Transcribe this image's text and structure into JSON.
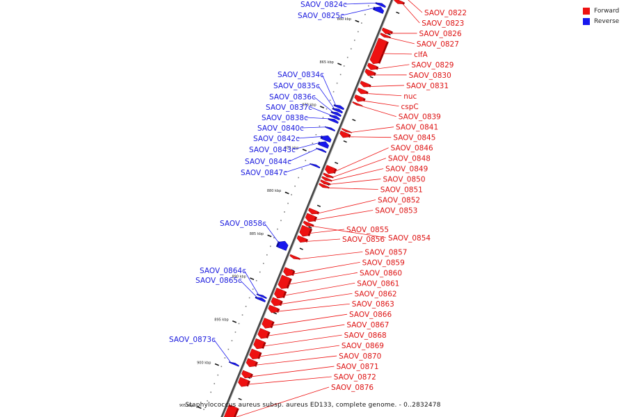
{
  "legend": {
    "forward_label": "Forward",
    "reverse_label": "Reverse",
    "forward_color": "#ee1111",
    "reverse_color": "#1818ee"
  },
  "caption": "Staphylococcus aureus subsp. aureus ED133, complete genome. - 0..2832478",
  "ticks": [
    {
      "label": "860 kbp",
      "pos": 860
    },
    {
      "label": "865 kbp",
      "pos": 865
    },
    {
      "label": "870 kbp",
      "pos": 870
    },
    {
      "label": "875 kbp",
      "pos": 875
    },
    {
      "label": "880 kbp",
      "pos": 880
    },
    {
      "label": "885 kbp",
      "pos": 885
    },
    {
      "label": "890 kbp",
      "pos": 890
    },
    {
      "label": "895 kbp",
      "pos": 895
    },
    {
      "label": "900 kbp",
      "pos": 900
    },
    {
      "label": "905 kbp",
      "pos": 905
    }
  ],
  "forward_genes": [
    {
      "name": "SAOV_0822",
      "start": 855.2,
      "end": 856.1
    },
    {
      "name": "SAOV_0823",
      "start": 856.2,
      "end": 856.6
    },
    {
      "name": "SAOV_0826",
      "start": 859.6,
      "end": 860.1
    },
    {
      "name": "SAOV_0827",
      "start": 860.2,
      "end": 860.5
    },
    {
      "name": "clfA",
      "start": 860.8,
      "end": 863.6
    },
    {
      "name": "SAOV_0829",
      "start": 863.7,
      "end": 864.3
    },
    {
      "name": "SAOV_0830",
      "start": 864.4,
      "end": 865.0
    },
    {
      "name": "SAOV_0831",
      "start": 865.8,
      "end": 866.3
    },
    {
      "name": "nuc",
      "start": 866.6,
      "end": 867.1
    },
    {
      "name": "cspC",
      "start": 867.4,
      "end": 868.0
    },
    {
      "name": "SAOV_0839",
      "start": 868.2,
      "end": 868.4
    },
    {
      "name": "SAOV_0841",
      "start": 871.3,
      "end": 871.5
    },
    {
      "name": "SAOV_0845",
      "start": 871.6,
      "end": 872.2
    },
    {
      "name": "SAOV_0846",
      "start": 875.6,
      "end": 876.4
    },
    {
      "name": "SAOV_0848",
      "start": 876.5,
      "end": 876.8
    },
    {
      "name": "SAOV_0849",
      "start": 876.9,
      "end": 877.2
    },
    {
      "name": "SAOV_0850",
      "start": 877.3,
      "end": 877.6
    },
    {
      "name": "SAOV_0851",
      "start": 877.7,
      "end": 878.0
    },
    {
      "name": "SAOV_0852",
      "start": 880.6,
      "end": 881.1
    },
    {
      "name": "SAOV_0853",
      "start": 881.2,
      "end": 882.0
    },
    {
      "name": "SAOV_0854",
      "start": 882.1,
      "end": 882.5
    },
    {
      "name": "SAOV_0855",
      "start": 882.6,
      "end": 883.7
    },
    {
      "name": "SAOV_0856",
      "start": 883.8,
      "end": 884.4
    },
    {
      "name": "SAOV_0857",
      "start": 886.0,
      "end": 886.3
    },
    {
      "name": "SAOV_0859",
      "start": 887.5,
      "end": 888.3
    },
    {
      "name": "SAOV_0860",
      "start": 888.4,
      "end": 889.8
    },
    {
      "name": "SAOV_0861",
      "start": 889.9,
      "end": 890.9
    },
    {
      "name": "SAOV_0862",
      "start": 891.0,
      "end": 891.8
    },
    {
      "name": "SAOV_0863",
      "start": 891.9,
      "end": 892.6
    },
    {
      "name": "SAOV_0866",
      "start": 893.4,
      "end": 894.4
    },
    {
      "name": "SAOV_0867",
      "start": 894.6,
      "end": 895.6
    },
    {
      "name": "SAOV_0868",
      "start": 895.8,
      "end": 896.8
    },
    {
      "name": "SAOV_0869",
      "start": 897.0,
      "end": 898.0
    },
    {
      "name": "SAOV_0870",
      "start": 898.1,
      "end": 898.9
    },
    {
      "name": "SAOV_0871",
      "start": 899.5,
      "end": 900.2
    },
    {
      "name": "SAOV_0872",
      "start": 900.3,
      "end": 901.2
    },
    {
      "name": "SAOV_0876",
      "start": 903.5,
      "end": 905.8
    }
  ],
  "reverse_genes": [
    {
      "name": "SAOV_0824c",
      "start": 857.2,
      "end": 857.5
    },
    {
      "name": "SAOV_0825c",
      "start": 857.6,
      "end": 858.2
    },
    {
      "name": "SAOV_0834c",
      "start": 869.1,
      "end": 869.4
    },
    {
      "name": "SAOV_0835c",
      "start": 869.5,
      "end": 869.8
    },
    {
      "name": "SAOV_0836c",
      "start": 869.9,
      "end": 870.2
    },
    {
      "name": "SAOV_0837c",
      "start": 870.3,
      "end": 870.6
    },
    {
      "name": "SAOV_0838c",
      "start": 870.7,
      "end": 871.0
    },
    {
      "name": "SAOV_0840c",
      "start": 871.7,
      "end": 871.9
    },
    {
      "name": "SAOV_0842c",
      "start": 872.6,
      "end": 873.2
    },
    {
      "name": "SAOV_0843c",
      "start": 873.3,
      "end": 873.9
    },
    {
      "name": "SAOV_0844c",
      "start": 874.2,
      "end": 874.4
    },
    {
      "name": "SAOV_0847c",
      "start": 876.0,
      "end": 876.2
    },
    {
      "name": "SAOV_0858c",
      "start": 884.9,
      "end": 885.8
    },
    {
      "name": "SAOV_0864c",
      "start": 891.2,
      "end": 891.4
    },
    {
      "name": "SAOV_0865c",
      "start": 891.5,
      "end": 891.8
    },
    {
      "name": "SAOV_0873c",
      "start": 899.1,
      "end": 899.3
    }
  ]
}
